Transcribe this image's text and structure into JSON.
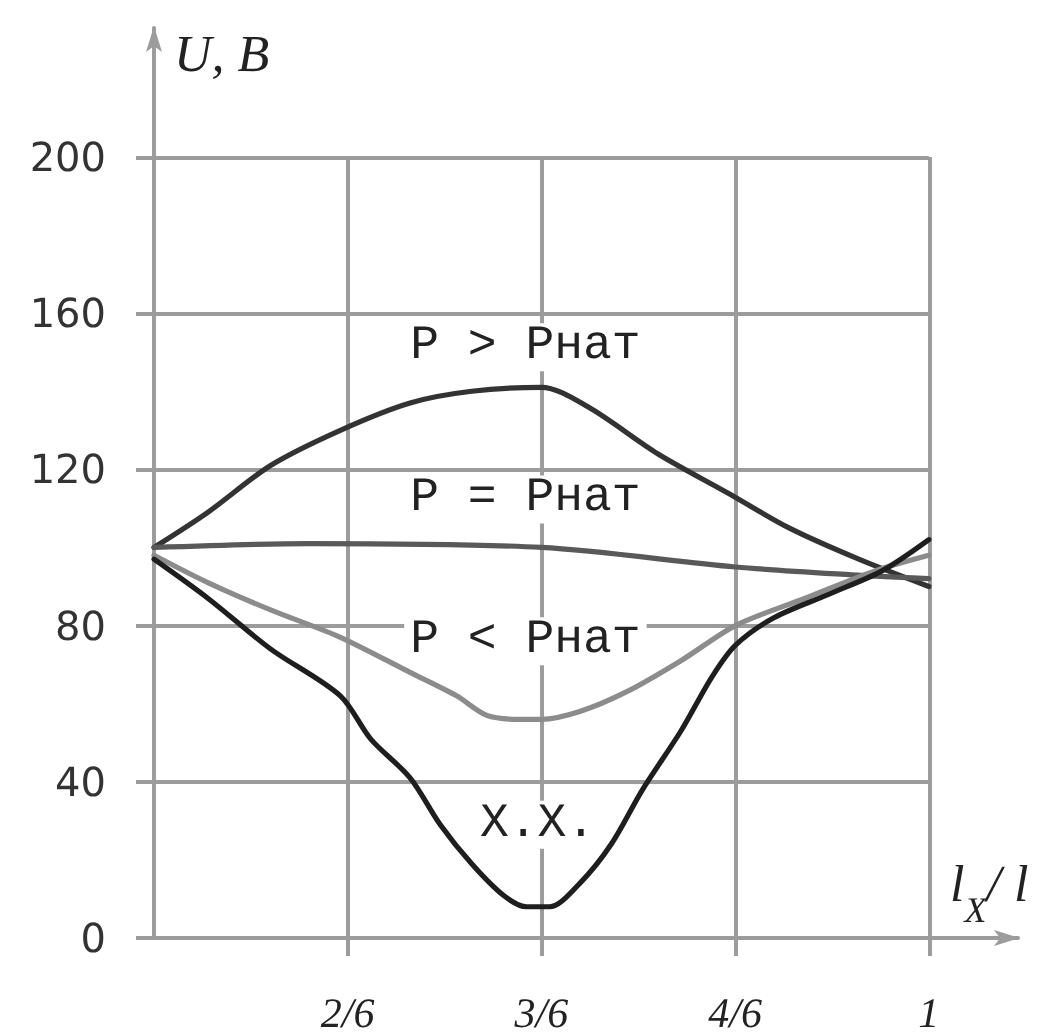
{
  "chart_data": {
    "type": "line",
    "xlabel": "l$_{X}$/ l",
    "ylabel": "U, В",
    "xlim": [
      0.1667,
      0.91
    ],
    "xticks": [
      {
        "value": 0.3333,
        "label": "2/6"
      },
      {
        "value": 0.5,
        "label": "3/6"
      },
      {
        "value": 0.6667,
        "label": "4/6"
      },
      {
        "value": 0.8333,
        "label": "1"
      }
    ],
    "ylim": [
      0,
      233
    ],
    "yticks": [
      0,
      40,
      80,
      120,
      160,
      200
    ],
    "grid": true,
    "legend": false,
    "marker": "none",
    "line_style": "solid",
    "series": [
      {
        "name": "Р > Рнат",
        "color": "#333333",
        "x": [
          0.1667,
          0.213,
          0.267,
          0.327,
          0.387,
          0.44,
          0.5,
          0.54,
          0.6,
          0.66,
          0.713,
          0.773,
          0.8333
        ],
        "values": [
          100,
          109,
          121,
          130,
          137,
          140,
          141,
          136,
          124,
          114,
          105,
          97,
          90
        ]
      },
      {
        "name": "Р = Рнат",
        "color": "#595959",
        "x": [
          0.1667,
          0.3,
          0.5,
          0.667,
          0.767,
          0.8333
        ],
        "values": [
          100,
          101,
          100,
          95,
          93,
          92
        ]
      },
      {
        "name": "Р < Рнат",
        "color": "#8c8c8c",
        "x": [
          0.1667,
          0.213,
          0.267,
          0.327,
          0.387,
          0.427,
          0.453,
          0.48,
          0.5,
          0.533,
          0.573,
          0.62,
          0.667,
          0.727,
          0.787,
          0.8333
        ],
        "values": [
          98,
          91,
          84,
          77,
          68,
          62,
          57,
          56,
          56,
          58,
          63,
          71,
          80,
          87,
          94,
          98
        ]
      },
      {
        "name": "Х.Х.",
        "color": "#1e1e1e",
        "x": [
          0.1667,
          0.213,
          0.267,
          0.327,
          0.353,
          0.387,
          0.413,
          0.44,
          0.467,
          0.487,
          0.507,
          0.533,
          0.56,
          0.587,
          0.62,
          0.647,
          0.667,
          0.7,
          0.747,
          0.793,
          0.8333
        ],
        "values": [
          97,
          87,
          74,
          62,
          51,
          41,
          29,
          19,
          11,
          8,
          8,
          14,
          24,
          38,
          53,
          67,
          75,
          82,
          88,
          94,
          102
        ]
      }
    ]
  }
}
